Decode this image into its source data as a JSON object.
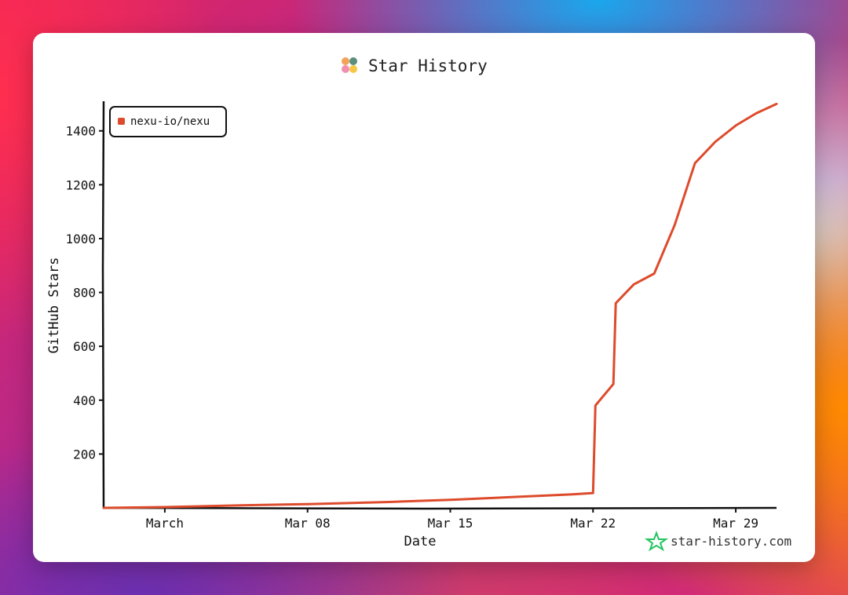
{
  "chart_data": {
    "type": "line",
    "title": "Star History",
    "xlabel": "Date",
    "ylabel": "GitHub Stars",
    "x_ticks": [
      {
        "label": "March",
        "date": "2025-03-01"
      },
      {
        "label": "Mar 08",
        "date": "2025-03-08"
      },
      {
        "label": "Mar 15",
        "date": "2025-03-15"
      },
      {
        "label": "Mar 22",
        "date": "2025-03-22"
      },
      {
        "label": "Mar 29",
        "date": "2025-03-29"
      }
    ],
    "y_ticks": [
      200,
      400,
      600,
      800,
      1000,
      1200,
      1400
    ],
    "xlim": [
      "2025-02-26",
      "2025-03-31"
    ],
    "ylim": [
      0,
      1510
    ],
    "legend_position": "top-left",
    "grid": false,
    "series": [
      {
        "name": "nexu-io/nexu",
        "color": "#dd4b2c",
        "points": [
          [
            "2025-02-26",
            0
          ],
          [
            "2025-03-01",
            3
          ],
          [
            "2025-03-05",
            10
          ],
          [
            "2025-03-08",
            14
          ],
          [
            "2025-03-12",
            22
          ],
          [
            "2025-03-15",
            30
          ],
          [
            "2025-03-18",
            40
          ],
          [
            "2025-03-21",
            50
          ],
          [
            "2025-03-22",
            55
          ],
          [
            "2025-03-22",
            380
          ],
          [
            "2025-03-23",
            460
          ],
          [
            "2025-03-23",
            760
          ],
          [
            "2025-03-24",
            830
          ],
          [
            "2025-03-25",
            870
          ],
          [
            "2025-03-26",
            1050
          ],
          [
            "2025-03-27",
            1280
          ],
          [
            "2025-03-28",
            1360
          ],
          [
            "2025-03-29",
            1420
          ],
          [
            "2025-03-30",
            1465
          ],
          [
            "2025-03-31",
            1500
          ]
        ]
      }
    ]
  },
  "brand": {
    "text": "star-history.com",
    "icon": "star-history-icon"
  },
  "logo": {
    "icon": "star-history-logo-icon",
    "colors": [
      "#f4a259",
      "#5b8e7d",
      "#f28fad",
      "#f6c744"
    ]
  }
}
